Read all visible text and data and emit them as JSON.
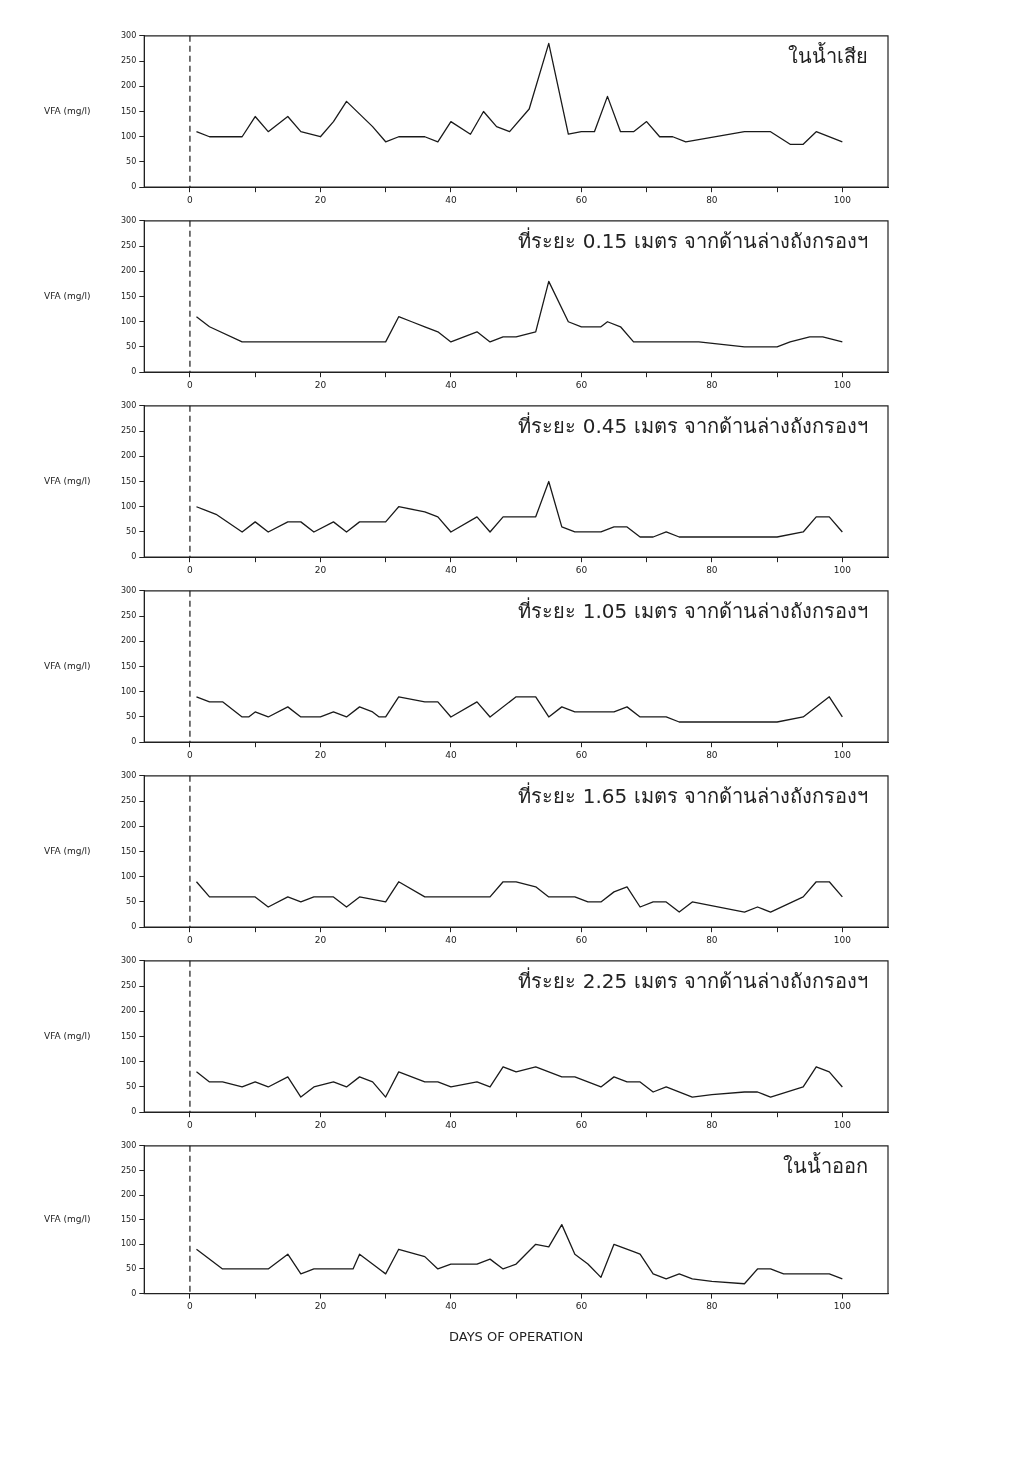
{
  "chart_data": [
    {
      "type": "line",
      "annotations": [
        "ในน้ำเสีย"
      ],
      "ylabel": "VFA (mg/l)",
      "color": "#1a1a1a",
      "marker": "none",
      "grid": false,
      "legend": false,
      "xlim": [
        -7,
        107
      ],
      "xticks": [
        0,
        {
          "value": 10,
          "label": null
        },
        20,
        {
          "value": 30,
          "label": null
        },
        40,
        {
          "value": 50,
          "label": null
        },
        60,
        {
          "value": 70,
          "label": null
        },
        80,
        {
          "value": 90,
          "label": null
        },
        100
      ],
      "ylim": [
        0,
        300
      ],
      "yticks": [
        0,
        50,
        100,
        150,
        200,
        250,
        300
      ],
      "ref_lines": [
        {
          "axis": "x",
          "value": 0,
          "label": null,
          "line_style": "dashed",
          "color": "#1a1a1a"
        }
      ],
      "x": [
        1,
        3,
        8,
        10,
        12,
        15,
        17,
        20,
        22,
        24,
        28,
        30,
        32,
        36,
        38,
        40,
        43,
        45,
        47,
        49,
        52,
        55,
        58,
        60,
        62,
        64,
        66,
        68,
        70,
        72,
        74,
        76,
        85,
        89,
        92,
        94,
        96,
        100
      ],
      "values": [
        110,
        100,
        100,
        140,
        110,
        140,
        110,
        100,
        130,
        170,
        120,
        90,
        100,
        100,
        90,
        130,
        105,
        150,
        120,
        110,
        155,
        285,
        105,
        110,
        110,
        180,
        110,
        110,
        130,
        100,
        100,
        90,
        110,
        110,
        85,
        85,
        110,
        90
      ]
    },
    {
      "type": "line",
      "annotations": [
        "ที่ระยะ 0.15 เมตร จากด้านล่างถังกรองฯ"
      ],
      "ylabel": "VFA (mg/l)",
      "color": "#1a1a1a",
      "marker": "none",
      "grid": false,
      "legend": false,
      "xlim": [
        -7,
        107
      ],
      "xticks": [
        0,
        {
          "value": 10,
          "label": null
        },
        20,
        {
          "value": 30,
          "label": null
        },
        40,
        {
          "value": 50,
          "label": null
        },
        60,
        {
          "value": 70,
          "label": null
        },
        80,
        {
          "value": 90,
          "label": null
        },
        100
      ],
      "ylim": [
        0,
        300
      ],
      "yticks": [
        0,
        50,
        100,
        150,
        200,
        250,
        300
      ],
      "ref_lines": [
        {
          "axis": "x",
          "value": 0,
          "label": null,
          "line_style": "dashed",
          "color": "#1a1a1a"
        }
      ],
      "x": [
        1,
        3,
        8,
        30,
        32,
        34,
        36,
        38,
        40,
        44,
        46,
        48,
        50,
        53,
        55,
        58,
        60,
        63,
        64,
        66,
        68,
        78,
        85,
        90,
        92,
        95,
        97,
        100
      ],
      "values": [
        110,
        90,
        60,
        60,
        110,
        100,
        90,
        80,
        60,
        80,
        60,
        70,
        70,
        80,
        180,
        100,
        90,
        90,
        100,
        90,
        60,
        60,
        50,
        50,
        60,
        70,
        70,
        60
      ]
    },
    {
      "type": "line",
      "annotations": [
        "ที่ระยะ 0.45 เมตร จากด้านล่างถังกรองฯ"
      ],
      "ylabel": "VFA (mg/l)",
      "color": "#1a1a1a",
      "marker": "none",
      "grid": false,
      "legend": false,
      "xlim": [
        -7,
        107
      ],
      "xticks": [
        0,
        {
          "value": 10,
          "label": null
        },
        20,
        {
          "value": 30,
          "label": null
        },
        40,
        {
          "value": 50,
          "label": null
        },
        60,
        {
          "value": 70,
          "label": null
        },
        80,
        {
          "value": 90,
          "label": null
        },
        100
      ],
      "ylim": [
        0,
        300
      ],
      "yticks": [
        0,
        50,
        100,
        150,
        200,
        250,
        300
      ],
      "ref_lines": [
        {
          "axis": "x",
          "value": 0,
          "label": null,
          "line_style": "dashed",
          "color": "#1a1a1a"
        }
      ],
      "x": [
        1,
        4,
        8,
        10,
        12,
        15,
        17,
        19,
        22,
        24,
        26,
        30,
        32,
        36,
        38,
        40,
        44,
        46,
        48,
        53,
        55,
        57,
        59,
        63,
        65,
        67,
        69,
        71,
        73,
        75,
        90,
        94,
        96,
        98,
        100
      ],
      "values": [
        100,
        85,
        50,
        70,
        50,
        70,
        70,
        50,
        70,
        50,
        70,
        70,
        100,
        90,
        80,
        50,
        80,
        50,
        80,
        80,
        150,
        60,
        50,
        50,
        60,
        60,
        40,
        40,
        50,
        40,
        40,
        50,
        80,
        80,
        50
      ]
    },
    {
      "type": "line",
      "annotations": [
        "ที่ระยะ 1.05 เมตร จากด้านล่างถังกรองฯ"
      ],
      "ylabel": "VFA (mg/l)",
      "color": "#1a1a1a",
      "marker": "none",
      "grid": false,
      "legend": false,
      "xlim": [
        -7,
        107
      ],
      "xticks": [
        0,
        {
          "value": 10,
          "label": null
        },
        20,
        {
          "value": 30,
          "label": null
        },
        40,
        {
          "value": 50,
          "label": null
        },
        60,
        {
          "value": 70,
          "label": null
        },
        80,
        {
          "value": 90,
          "label": null
        },
        100
      ],
      "ylim": [
        0,
        300
      ],
      "yticks": [
        0,
        50,
        100,
        150,
        200,
        250,
        300
      ],
      "ref_lines": [
        {
          "axis": "x",
          "value": 0,
          "label": null,
          "line_style": "dashed",
          "color": "#1a1a1a"
        }
      ],
      "x": [
        1,
        3,
        5,
        8,
        9,
        10,
        12,
        15,
        17,
        20,
        22,
        24,
        26,
        28,
        29,
        30,
        32,
        36,
        38,
        40,
        44,
        46,
        50,
        53,
        55,
        57,
        59,
        65,
        67,
        69,
        73,
        75,
        90,
        94,
        98,
        100
      ],
      "values": [
        90,
        80,
        80,
        50,
        50,
        60,
        50,
        70,
        50,
        50,
        60,
        50,
        70,
        60,
        50,
        50,
        90,
        80,
        80,
        50,
        80,
        50,
        90,
        90,
        50,
        70,
        60,
        60,
        70,
        50,
        50,
        40,
        40,
        50,
        90,
        50
      ]
    },
    {
      "type": "line",
      "annotations": [
        "ที่ระยะ 1.65 เมตร จากด้านล่างถังกรองฯ"
      ],
      "ylabel": "VFA (mg/l)",
      "color": "#1a1a1a",
      "marker": "none",
      "grid": false,
      "legend": false,
      "xlim": [
        -7,
        107
      ],
      "xticks": [
        0,
        {
          "value": 10,
          "label": null
        },
        20,
        {
          "value": 30,
          "label": null
        },
        40,
        {
          "value": 50,
          "label": null
        },
        60,
        {
          "value": 70,
          "label": null
        },
        80,
        {
          "value": 90,
          "label": null
        },
        100
      ],
      "ylim": [
        0,
        300
      ],
      "yticks": [
        0,
        50,
        100,
        150,
        200,
        250,
        300
      ],
      "ref_lines": [
        {
          "axis": "x",
          "value": 0,
          "label": null,
          "line_style": "dashed",
          "color": "#1a1a1a"
        }
      ],
      "x": [
        1,
        3,
        10,
        12,
        15,
        17,
        19,
        22,
        24,
        26,
        30,
        32,
        36,
        46,
        48,
        50,
        53,
        55,
        59,
        61,
        63,
        65,
        67,
        69,
        71,
        73,
        75,
        77,
        85,
        87,
        89,
        94,
        96,
        98,
        100
      ],
      "values": [
        90,
        60,
        60,
        40,
        60,
        50,
        60,
        60,
        40,
        60,
        50,
        90,
        60,
        60,
        90,
        90,
        80,
        60,
        60,
        50,
        50,
        70,
        80,
        40,
        50,
        50,
        30,
        50,
        30,
        40,
        30,
        60,
        90,
        90,
        60
      ]
    },
    {
      "type": "line",
      "annotations": [
        "ที่ระยะ 2.25 เมตร จากด้านล่างถังกรองฯ"
      ],
      "ylabel": "VFA (mg/l)",
      "color": "#1a1a1a",
      "marker": "none",
      "grid": false,
      "legend": false,
      "xlim": [
        -7,
        107
      ],
      "xticks": [
        0,
        {
          "value": 10,
          "label": null
        },
        20,
        {
          "value": 30,
          "label": null
        },
        40,
        {
          "value": 50,
          "label": null
        },
        60,
        {
          "value": 70,
          "label": null
        },
        80,
        {
          "value": 90,
          "label": null
        },
        100
      ],
      "ylim": [
        0,
        300
      ],
      "yticks": [
        0,
        50,
        100,
        150,
        200,
        250,
        300
      ],
      "ref_lines": [
        {
          "axis": "x",
          "value": 0,
          "label": null,
          "line_style": "dashed",
          "color": "#1a1a1a"
        }
      ],
      "x": [
        1,
        3,
        5,
        8,
        10,
        12,
        15,
        17,
        19,
        22,
        24,
        26,
        28,
        30,
        32,
        36,
        38,
        40,
        44,
        46,
        48,
        50,
        53,
        57,
        59,
        61,
        63,
        65,
        67,
        69,
        71,
        73,
        77,
        80,
        85,
        87,
        89,
        94,
        96,
        98,
        100
      ],
      "values": [
        80,
        60,
        60,
        50,
        60,
        50,
        70,
        30,
        50,
        60,
        50,
        70,
        60,
        30,
        80,
        60,
        60,
        50,
        60,
        50,
        90,
        80,
        90,
        70,
        70,
        60,
        50,
        70,
        60,
        60,
        40,
        50,
        30,
        35,
        40,
        40,
        30,
        50,
        90,
        80,
        50
      ]
    },
    {
      "type": "line",
      "annotations": [
        "ในน้ำออก"
      ],
      "ylabel": "VFA (mg/l)",
      "xlabel": "DAYS OF OPERATION",
      "color": "#1a1a1a",
      "marker": "none",
      "grid": false,
      "legend": false,
      "xlim": [
        -7,
        107
      ],
      "xticks": [
        0,
        {
          "value": 10,
          "label": null
        },
        20,
        {
          "value": 30,
          "label": null
        },
        40,
        {
          "value": 50,
          "label": null
        },
        60,
        {
          "value": 70,
          "label": null
        },
        80,
        {
          "value": 90,
          "label": null
        },
        100
      ],
      "ylim": [
        0,
        300
      ],
      "yticks": [
        0,
        50,
        100,
        150,
        200,
        250,
        300
      ],
      "ref_lines": [
        {
          "axis": "x",
          "value": 0,
          "label": null,
          "line_style": "dashed",
          "color": "#1a1a1a"
        }
      ],
      "x": [
        1,
        5,
        12,
        15,
        17,
        19,
        25,
        26,
        30,
        32,
        36,
        38,
        40,
        44,
        46,
        48,
        50,
        53,
        55,
        57,
        59,
        61,
        63,
        65,
        68,
        69,
        71,
        73,
        75,
        77,
        80,
        85,
        87,
        89,
        91,
        98,
        100
      ],
      "values": [
        90,
        50,
        50,
        80,
        40,
        50,
        50,
        80,
        40,
        90,
        75,
        50,
        60,
        60,
        70,
        50,
        60,
        100,
        95,
        140,
        80,
        60,
        33,
        100,
        85,
        80,
        40,
        30,
        40,
        30,
        25,
        20,
        50,
        50,
        40,
        40,
        30
      ]
    }
  ]
}
